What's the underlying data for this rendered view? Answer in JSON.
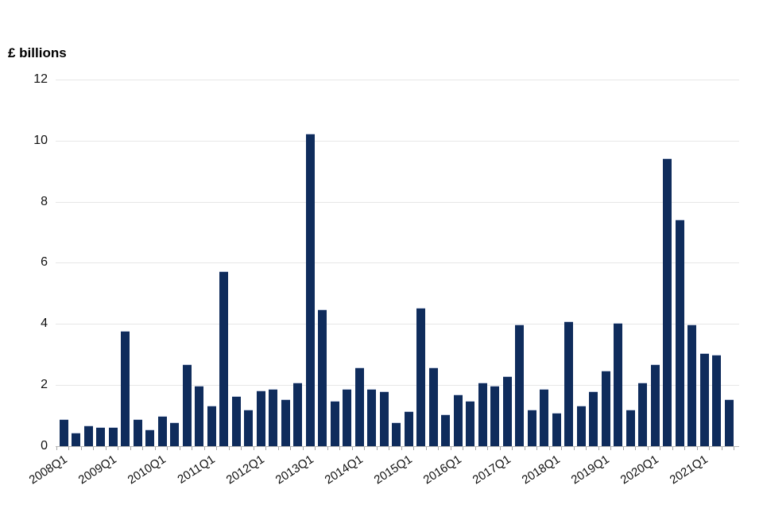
{
  "title": "£ billions",
  "colors": {
    "bar": "#0f2c5c",
    "bar_top_edge": "#c4cde0",
    "gridline": "#e7e7e7",
    "axis_line": "#b5b5b5",
    "tick": "#a8a8a8",
    "text": "#111111",
    "background": "#ffffff"
  },
  "chart_data": {
    "type": "bar",
    "title": "£ billions",
    "xlabel": "",
    "ylabel": "£ billions",
    "ylim": [
      0,
      12
    ],
    "ytick_step": 2,
    "y_tick_labels": [
      "0",
      "2",
      "4",
      "6",
      "8",
      "10",
      "12"
    ],
    "grid": "horizontal",
    "legend": "none",
    "x_tick_labels": [
      "2008Q1",
      "2009Q1",
      "2010Q1",
      "2011Q1",
      "2012Q1",
      "2013Q1",
      "2014Q1",
      "2015Q1",
      "2016Q1",
      "2017Q1",
      "2018Q1",
      "2019Q1",
      "2020Q1",
      "2021Q1"
    ],
    "categories": [
      "2008Q1",
      "2008Q2",
      "2008Q3",
      "2008Q4",
      "2009Q1",
      "2009Q2",
      "2009Q3",
      "2009Q4",
      "2010Q1",
      "2010Q2",
      "2010Q3",
      "2010Q4",
      "2011Q1",
      "2011Q2",
      "2011Q3",
      "2011Q4",
      "2012Q1",
      "2012Q2",
      "2012Q3",
      "2012Q4",
      "2013Q1",
      "2013Q2",
      "2013Q3",
      "2013Q4",
      "2014Q1",
      "2014Q2",
      "2014Q3",
      "2014Q4",
      "2015Q1",
      "2015Q2",
      "2015Q3",
      "2015Q4",
      "2016Q1",
      "2016Q2",
      "2016Q3",
      "2016Q4",
      "2017Q1",
      "2017Q2",
      "2017Q3",
      "2017Q4",
      "2018Q1",
      "2018Q2",
      "2018Q3",
      "2018Q4",
      "2019Q1",
      "2019Q2",
      "2019Q3",
      "2019Q4",
      "2020Q1",
      "2020Q2",
      "2020Q3",
      "2020Q4",
      "2021Q1",
      "2021Q2",
      "2021Q3"
    ],
    "values": [
      0.9,
      0.45,
      0.7,
      0.65,
      0.65,
      3.8,
      0.9,
      0.55,
      1.0,
      0.8,
      2.7,
      2.0,
      1.35,
      5.75,
      1.65,
      1.2,
      1.85,
      1.9,
      1.55,
      2.1,
      10.25,
      4.5,
      1.5,
      1.9,
      2.6,
      1.9,
      1.8,
      0.8,
      1.15,
      4.55,
      2.6,
      1.05,
      1.7,
      1.5,
      2.1,
      2.0,
      2.3,
      4.0,
      1.2,
      1.9,
      1.1,
      4.1,
      1.35,
      1.8,
      2.5,
      4.05,
      1.2,
      2.1,
      2.7,
      9.45,
      7.45,
      4.0,
      3.05,
      3.0,
      1.55
    ]
  }
}
